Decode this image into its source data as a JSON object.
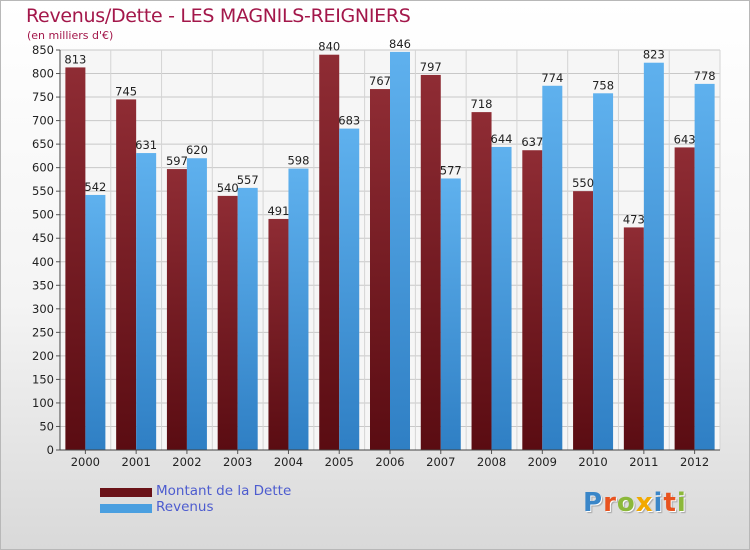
{
  "title": "Revenus/Dette - LES MAGNILS-REIGNIERS",
  "subtitle": "(en milliers d'€)",
  "logo": {
    "text": "Proxiti",
    "letters": [
      {
        "ch": "P",
        "color": "#3a86c8"
      },
      {
        "ch": "r",
        "color": "#e8531f"
      },
      {
        "ch": "o",
        "color": "#8cb83a"
      },
      {
        "ch": "x",
        "color": "#f2a900"
      },
      {
        "ch": "i",
        "color": "#3a86c8"
      },
      {
        "ch": "t",
        "color": "#e8531f"
      },
      {
        "ch": "i",
        "color": "#8cb83a"
      }
    ]
  },
  "colors": {
    "debt": "#7a1a20",
    "debt_light": "#a03a40",
    "revenue": "#4a9fe0",
    "revenue_light": "#6bb7f0",
    "title": "#a3174a",
    "legend_text": "#4d5ccf"
  },
  "chart_data": {
    "type": "bar",
    "title": "Revenus/Dette - LES MAGNILS-REIGNIERS",
    "ylabel": "(en milliers d'€)",
    "categories": [
      "2000",
      "2001",
      "2002",
      "2003",
      "2004",
      "2005",
      "2006",
      "2007",
      "2008",
      "2009",
      "2010",
      "2011",
      "2012"
    ],
    "series": [
      {
        "name": "Montant de la Dette",
        "values": [
          813,
          745,
          597,
          540,
          491,
          840,
          767,
          797,
          718,
          637,
          550,
          473,
          643
        ]
      },
      {
        "name": "Revenus",
        "values": [
          542,
          631,
          620,
          557,
          598,
          683,
          846,
          577,
          644,
          774,
          758,
          823,
          778
        ]
      }
    ],
    "ylim": [
      0,
      850
    ],
    "yticks": [
      0,
      50,
      100,
      150,
      200,
      250,
      300,
      350,
      400,
      450,
      500,
      550,
      600,
      650,
      700,
      750,
      800,
      850
    ],
    "grid": true,
    "legend_position": "bottom-left",
    "data_labels": true
  }
}
